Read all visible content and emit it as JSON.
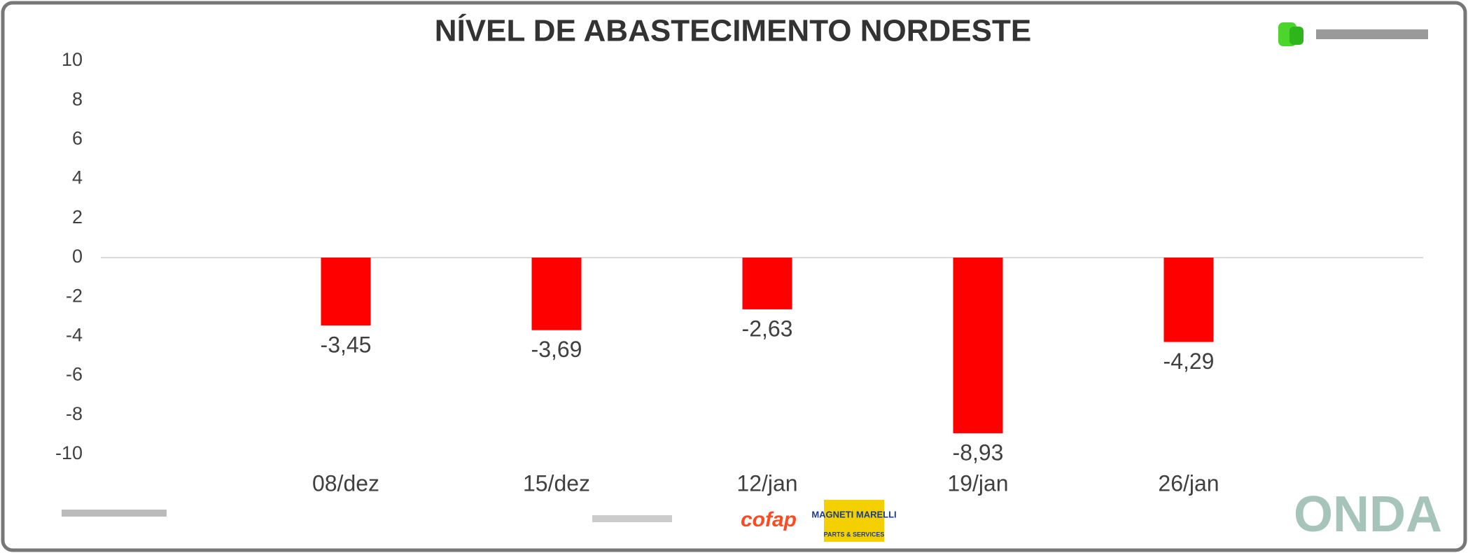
{
  "chart_data": {
    "type": "bar",
    "title": "NÍVEL DE ABASTECIMENTO NORDESTE",
    "categories": [
      "08/dez",
      "15/dez",
      "12/jan",
      "19/jan",
      "26/jan"
    ],
    "values": [
      -3.45,
      -3.69,
      -2.63,
      -8.93,
      -4.29
    ],
    "value_labels": [
      "-3,45",
      "-3,69",
      "-2,63",
      "-8,93",
      "-4,29"
    ],
    "color": "#ff0000",
    "ylim": [
      -10,
      10
    ],
    "yticks": [
      10,
      8,
      6,
      4,
      2,
      0,
      -2,
      -4,
      -6,
      -8,
      -10
    ]
  },
  "footer": {
    "brand": "ONDA",
    "sponsor1": "cofap",
    "sponsor2": "MAGNETI MARELLI",
    "sponsor2_sub": "PARTS & SERVICES"
  }
}
